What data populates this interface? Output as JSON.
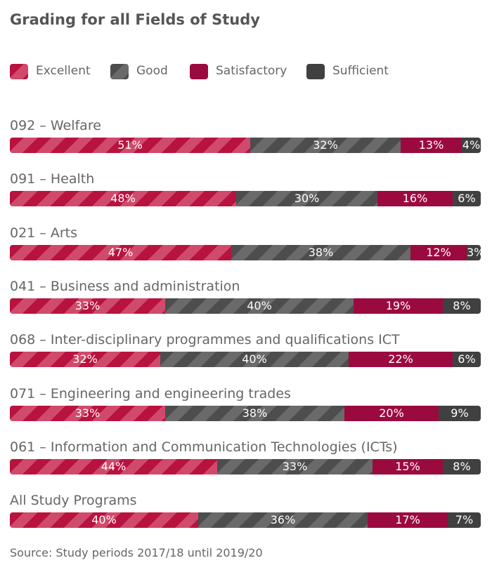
{
  "chart_data": {
    "type": "bar",
    "orientation": "horizontal",
    "stacked": true,
    "title": "Grading for all Fields of Study",
    "source": "Source: Study periods 2017/18 until 2019/20",
    "legend_placement": "top-left",
    "series": [
      {
        "name": "Excellent",
        "color": "#b8123e",
        "stripe": "#d04a6c"
      },
      {
        "name": "Good",
        "color": "#4d4d4d",
        "stripe": "#6a6a6a"
      },
      {
        "name": "Satisfactory",
        "color": "#9b0a3f",
        "stripe": "#9b0a3f"
      },
      {
        "name": "Sufficient",
        "color": "#404040",
        "stripe": "#404040"
      }
    ],
    "categories": [
      {
        "label": "092 – Welfare",
        "values": [
          51,
          32,
          13,
          4
        ]
      },
      {
        "label": "091 – Health",
        "values": [
          48,
          30,
          16,
          6
        ]
      },
      {
        "label": "021 – Arts",
        "values": [
          47,
          38,
          12,
          3
        ]
      },
      {
        "label": "041 – Business and administration",
        "values": [
          33,
          40,
          19,
          8
        ]
      },
      {
        "label": "068 – Inter-disciplinary programmes and qualifications ICT",
        "values": [
          32,
          40,
          22,
          6
        ]
      },
      {
        "label": "071 – Engineering and engineering trades",
        "values": [
          33,
          38,
          20,
          9
        ]
      },
      {
        "label": "061 – Information and Communication Technologies (ICTs)",
        "values": [
          44,
          33,
          15,
          8
        ]
      },
      {
        "label": "All Study Programs",
        "values": [
          40,
          36,
          17,
          7
        ]
      }
    ],
    "value_suffix": "%"
  }
}
